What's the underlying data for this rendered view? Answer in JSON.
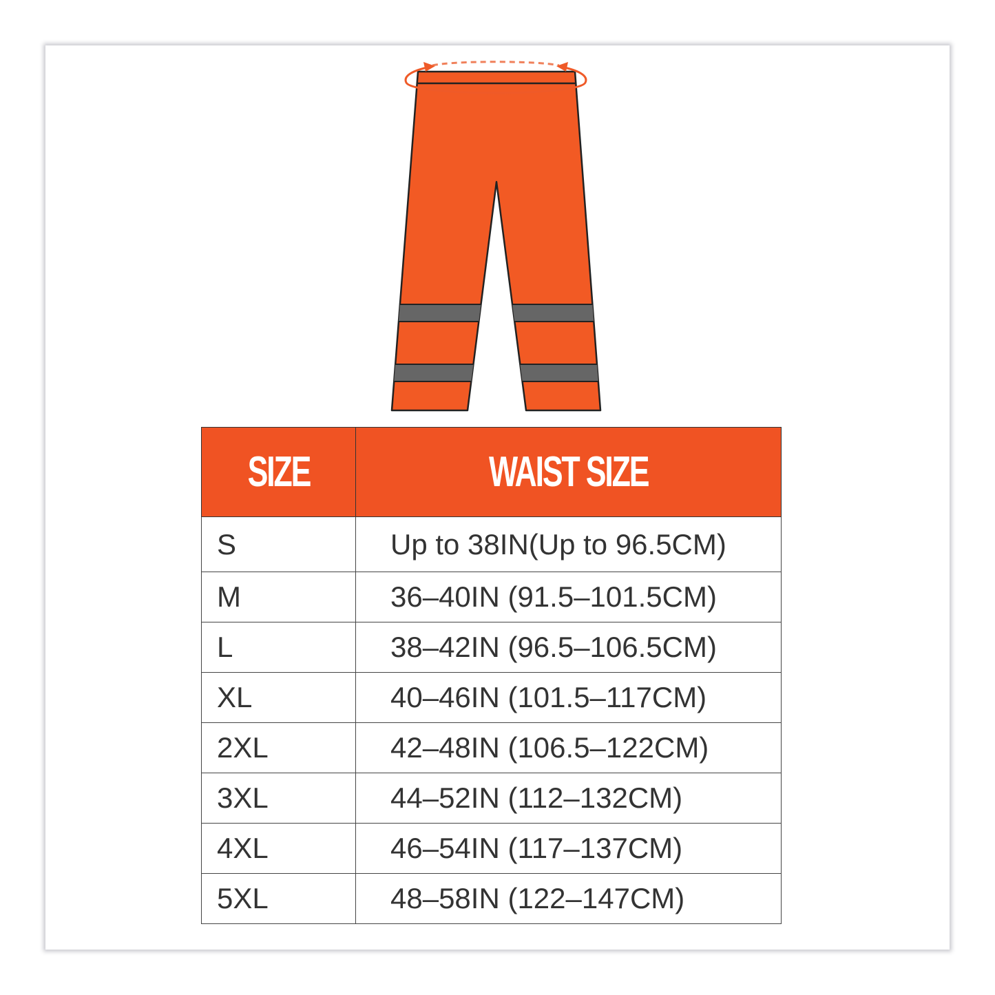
{
  "colors": {
    "accent": "#f05323",
    "stripe": "#666666",
    "outline": "#222222"
  },
  "illustration": {
    "name": "pants-waist-measure",
    "icon": "waist-measurement-arrows"
  },
  "table": {
    "headers": [
      "SIZE",
      "WAIST SIZE"
    ],
    "rows": [
      {
        "size": "S",
        "waist": "Up to 38IN(Up to 96.5CM)"
      },
      {
        "size": "M",
        "waist": "36–40IN (91.5–101.5CM)"
      },
      {
        "size": "L",
        "waist": "38–42IN (96.5–106.5CM)"
      },
      {
        "size": "XL",
        "waist": "40–46IN (101.5–117CM)"
      },
      {
        "size": "2XL",
        "waist": "42–48IN (106.5–122CM)"
      },
      {
        "size": "3XL",
        "waist": "44–52IN (112–132CM)"
      },
      {
        "size": "4XL",
        "waist": "46–54IN (117–137CM)"
      },
      {
        "size": "5XL",
        "waist": "48–58IN (122–147CM)"
      }
    ]
  }
}
